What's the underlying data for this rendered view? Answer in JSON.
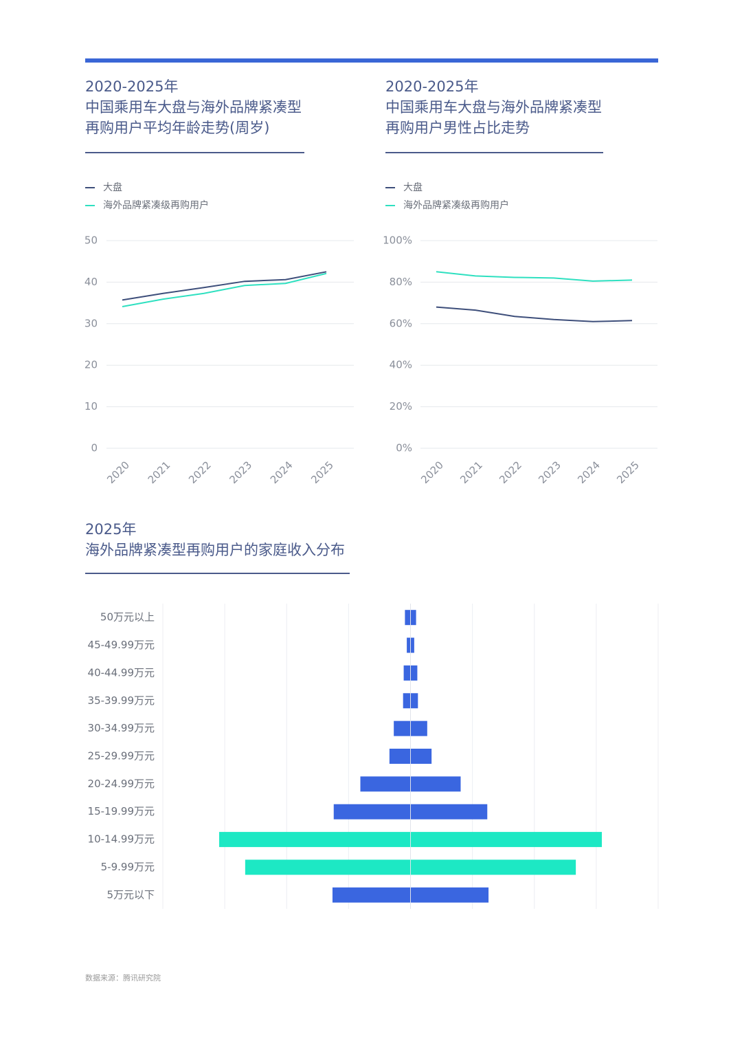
{
  "chart_data": [
    {
      "type": "line",
      "title_lines": [
        "2020-2025年",
        "中国乘用车大盘与海外品牌紧凑型",
        "再购用户平均年龄走势(周岁)"
      ],
      "categories": [
        "2020",
        "2021",
        "2022",
        "2023",
        "2024",
        "2025"
      ],
      "series": [
        {
          "name": "大盘",
          "color": "#3d4e7a",
          "values": [
            35.7,
            37.3,
            38.7,
            40.2,
            40.6,
            42.5
          ]
        },
        {
          "name": "海外品牌紧凑级再购用户",
          "color": "#2ee0c0",
          "values": [
            34.1,
            35.9,
            37.3,
            39.2,
            39.7,
            42.1
          ]
        }
      ],
      "ylim": [
        0,
        50
      ],
      "yticks": [
        0,
        10,
        20,
        30,
        40,
        50
      ],
      "grid": true
    },
    {
      "type": "line",
      "title_lines": [
        "2020-2025年",
        "中国乘用车大盘与海外品牌紧凑型",
        "再购用户男性占比走势"
      ],
      "categories": [
        "2020",
        "2021",
        "2022",
        "2023",
        "2024",
        "2025"
      ],
      "series": [
        {
          "name": "大盘",
          "color": "#3d4e7a",
          "values": [
            68,
            66.5,
            63.5,
            62,
            61,
            61.5
          ]
        },
        {
          "name": "海外品牌紧凑级再购用户",
          "color": "#2ee0c0",
          "values": [
            85,
            83,
            82.3,
            82,
            80.5,
            81
          ]
        }
      ],
      "ylim": [
        0,
        100
      ],
      "yticks": [
        {
          "value": 0,
          "label": "0%"
        },
        {
          "value": 20,
          "label": "20%"
        },
        {
          "value": 40,
          "label": "40%"
        },
        {
          "value": 60,
          "label": "60%"
        },
        {
          "value": 80,
          "label": "80%"
        },
        {
          "value": 100,
          "label": "100%"
        }
      ],
      "grid": true
    },
    {
      "type": "butterfly",
      "title_lines": [
        "2025年",
        "海外品牌紧凑型再购用户的家庭收入分布"
      ],
      "categories": [
        "50万元以上",
        "45-49.99万元",
        "40-44.99万元",
        "35-39.99万元",
        "30-34.99万元",
        "25-29.99万元",
        "20-24.99万元",
        "15-19.99万元",
        "10-14.99万元",
        "5-9.99万元",
        "5万元以下"
      ],
      "values": [
        0.9,
        0.6,
        1.1,
        1.2,
        2.7,
        3.4,
        8.1,
        12.4,
        30.9,
        26.7,
        12.6
      ],
      "colors": [
        "#3a66e0",
        "#3a66e0",
        "#3a66e0",
        "#3a66e0",
        "#3a66e0",
        "#3a66e0",
        "#3a66e0",
        "#3a66e0",
        "#1de8c4",
        "#1de8c4",
        "#3a66e0"
      ],
      "xlim": [
        -20,
        20
      ],
      "xticks": [
        -20,
        -15,
        -10,
        -5,
        0,
        5,
        10,
        15,
        20
      ],
      "grid": true
    }
  ],
  "footer": "数据来源：腾讯研究院"
}
